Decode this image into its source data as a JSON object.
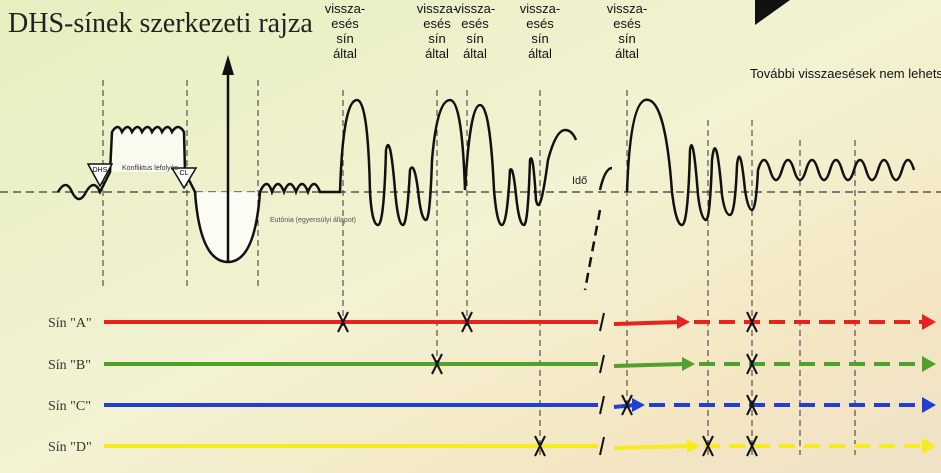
{
  "title": "DHS-sínek szerkezeti rajza",
  "relapse_labels": [
    {
      "lines": [
        "vissza-",
        "esés",
        "sín",
        "által"
      ]
    },
    {
      "lines": [
        "vissza-",
        "esés",
        "sín",
        "által"
      ]
    },
    {
      "lines": [
        "vissza-",
        "esés",
        "sín",
        "által"
      ]
    },
    {
      "lines": [
        "vissza-",
        "esés",
        "sín",
        "által"
      ]
    },
    {
      "lines": [
        "vissza-",
        "esés",
        "sín",
        "által"
      ]
    }
  ],
  "note": "További visszaesések nem lehetségesek",
  "time_label": "Idő",
  "phase_labels": [
    "Konfliktus lefolyás",
    "DHS",
    "CL",
    "Eutónia (egyensúlyi állapot)"
  ],
  "rails": [
    {
      "label": "Sín \"A\"",
      "color": "#e8231f"
    },
    {
      "label": "Sín \"B\"",
      "color": "#4fa12c"
    },
    {
      "label": "Sín \"C\"",
      "color": "#1f3fd6"
    },
    {
      "label": "Sín \"D\"",
      "color": "#f5ec1a"
    }
  ]
}
